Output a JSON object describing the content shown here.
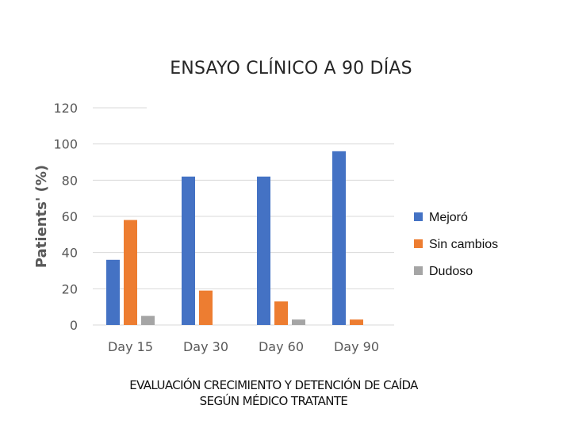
{
  "chart_data": {
    "type": "bar",
    "title": "ENSAYO CLÍNICO A 90 DÍAS",
    "ylabel": "Patients' (%)",
    "xlabel": "",
    "categories": [
      "Day 15",
      "Day 30",
      "Day 60",
      "Day 90"
    ],
    "ylim": [
      0,
      120
    ],
    "yticks": [
      0,
      20,
      40,
      60,
      80,
      100,
      120
    ],
    "grid": true,
    "legend_position": "right",
    "series": [
      {
        "name": "Mejoró",
        "color": "#4472c4",
        "values": [
          36,
          82,
          82,
          96
        ]
      },
      {
        "name": "Sin cambios",
        "color": "#ed7d31",
        "values": [
          58,
          19,
          13,
          3
        ]
      },
      {
        "name": "Dudoso",
        "color": "#a5a5a5",
        "values": [
          5,
          0,
          3,
          0
        ]
      }
    ]
  },
  "caption": {
    "line1": "EVALUACIÓN CRECIMIENTO Y DETENCIÓN DE CAÍDA",
    "line2": "SEGÚN MÉDICO TRATANTE"
  }
}
